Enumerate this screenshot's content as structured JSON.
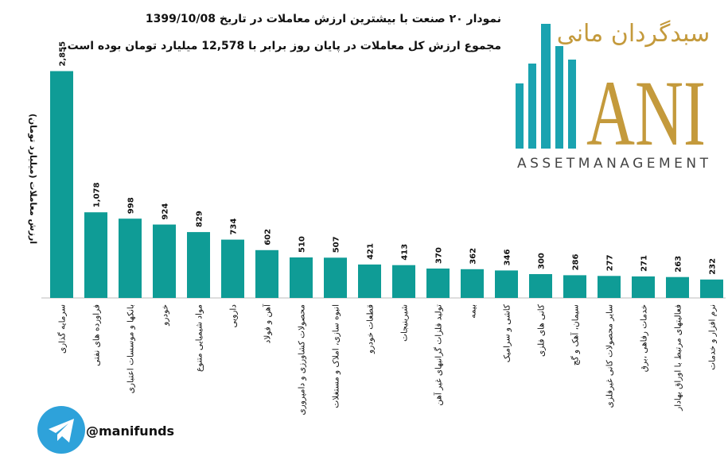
{
  "chart_data": {
    "type": "bar",
    "title": "نمودار ۲۰ صنعت با بیشترین ارزش معاملات در تاریخ 1399/10/08",
    "subtitle": "مجموع ارزش کل معاملات در پایان روز برابر با 12,578 میلیارد تومان بوده است.",
    "y_label": "ارزش معاملات (میلیارد تومان)",
    "categories": [
      "سرمایه گذاری",
      "فراورده های نفتی",
      "بانکها و موسسات اعتباری",
      "خودرو",
      "مواد شیمیایی متنوع",
      "دارویی",
      "آهن و فولاد",
      "محصولات کشاورزی و دامپروری",
      "انبوه سازی، املاک و مستغلات",
      "قطعات خودرو",
      "شیرینیجات",
      "تولید فلزات گرانبهای غیر آهن",
      "بیمه",
      "کاشی و سرامیک",
      "کانی های فلزی",
      "سیمان، آهک و گچ",
      "سایر محصولات کانی غیرفلزی",
      "خدمات رفاهی ،برق",
      "فعالیتهای مرتبط با اوراق بهادار",
      "نرم افزار و خدمات"
    ],
    "values": [
      2855,
      1078,
      998,
      924,
      829,
      734,
      602,
      510,
      507,
      421,
      413,
      370,
      362,
      346,
      300,
      286,
      277,
      271,
      263,
      232
    ],
    "value_labels": [
      "2,855",
      "1,078",
      "998",
      "924",
      "829",
      "734",
      "602",
      "510",
      "507",
      "421",
      "413",
      "370",
      "362",
      "346",
      "300",
      "286",
      "277",
      "271",
      "263",
      "232"
    ],
    "color": "#0f9c96",
    "ylim": [
      0,
      2880
    ]
  },
  "logo": {
    "persian": "سبدگردان مانی",
    "mark": "ANI",
    "english": "ASSETMANAGEMENT"
  },
  "footer": {
    "handle": "@manifunds"
  }
}
